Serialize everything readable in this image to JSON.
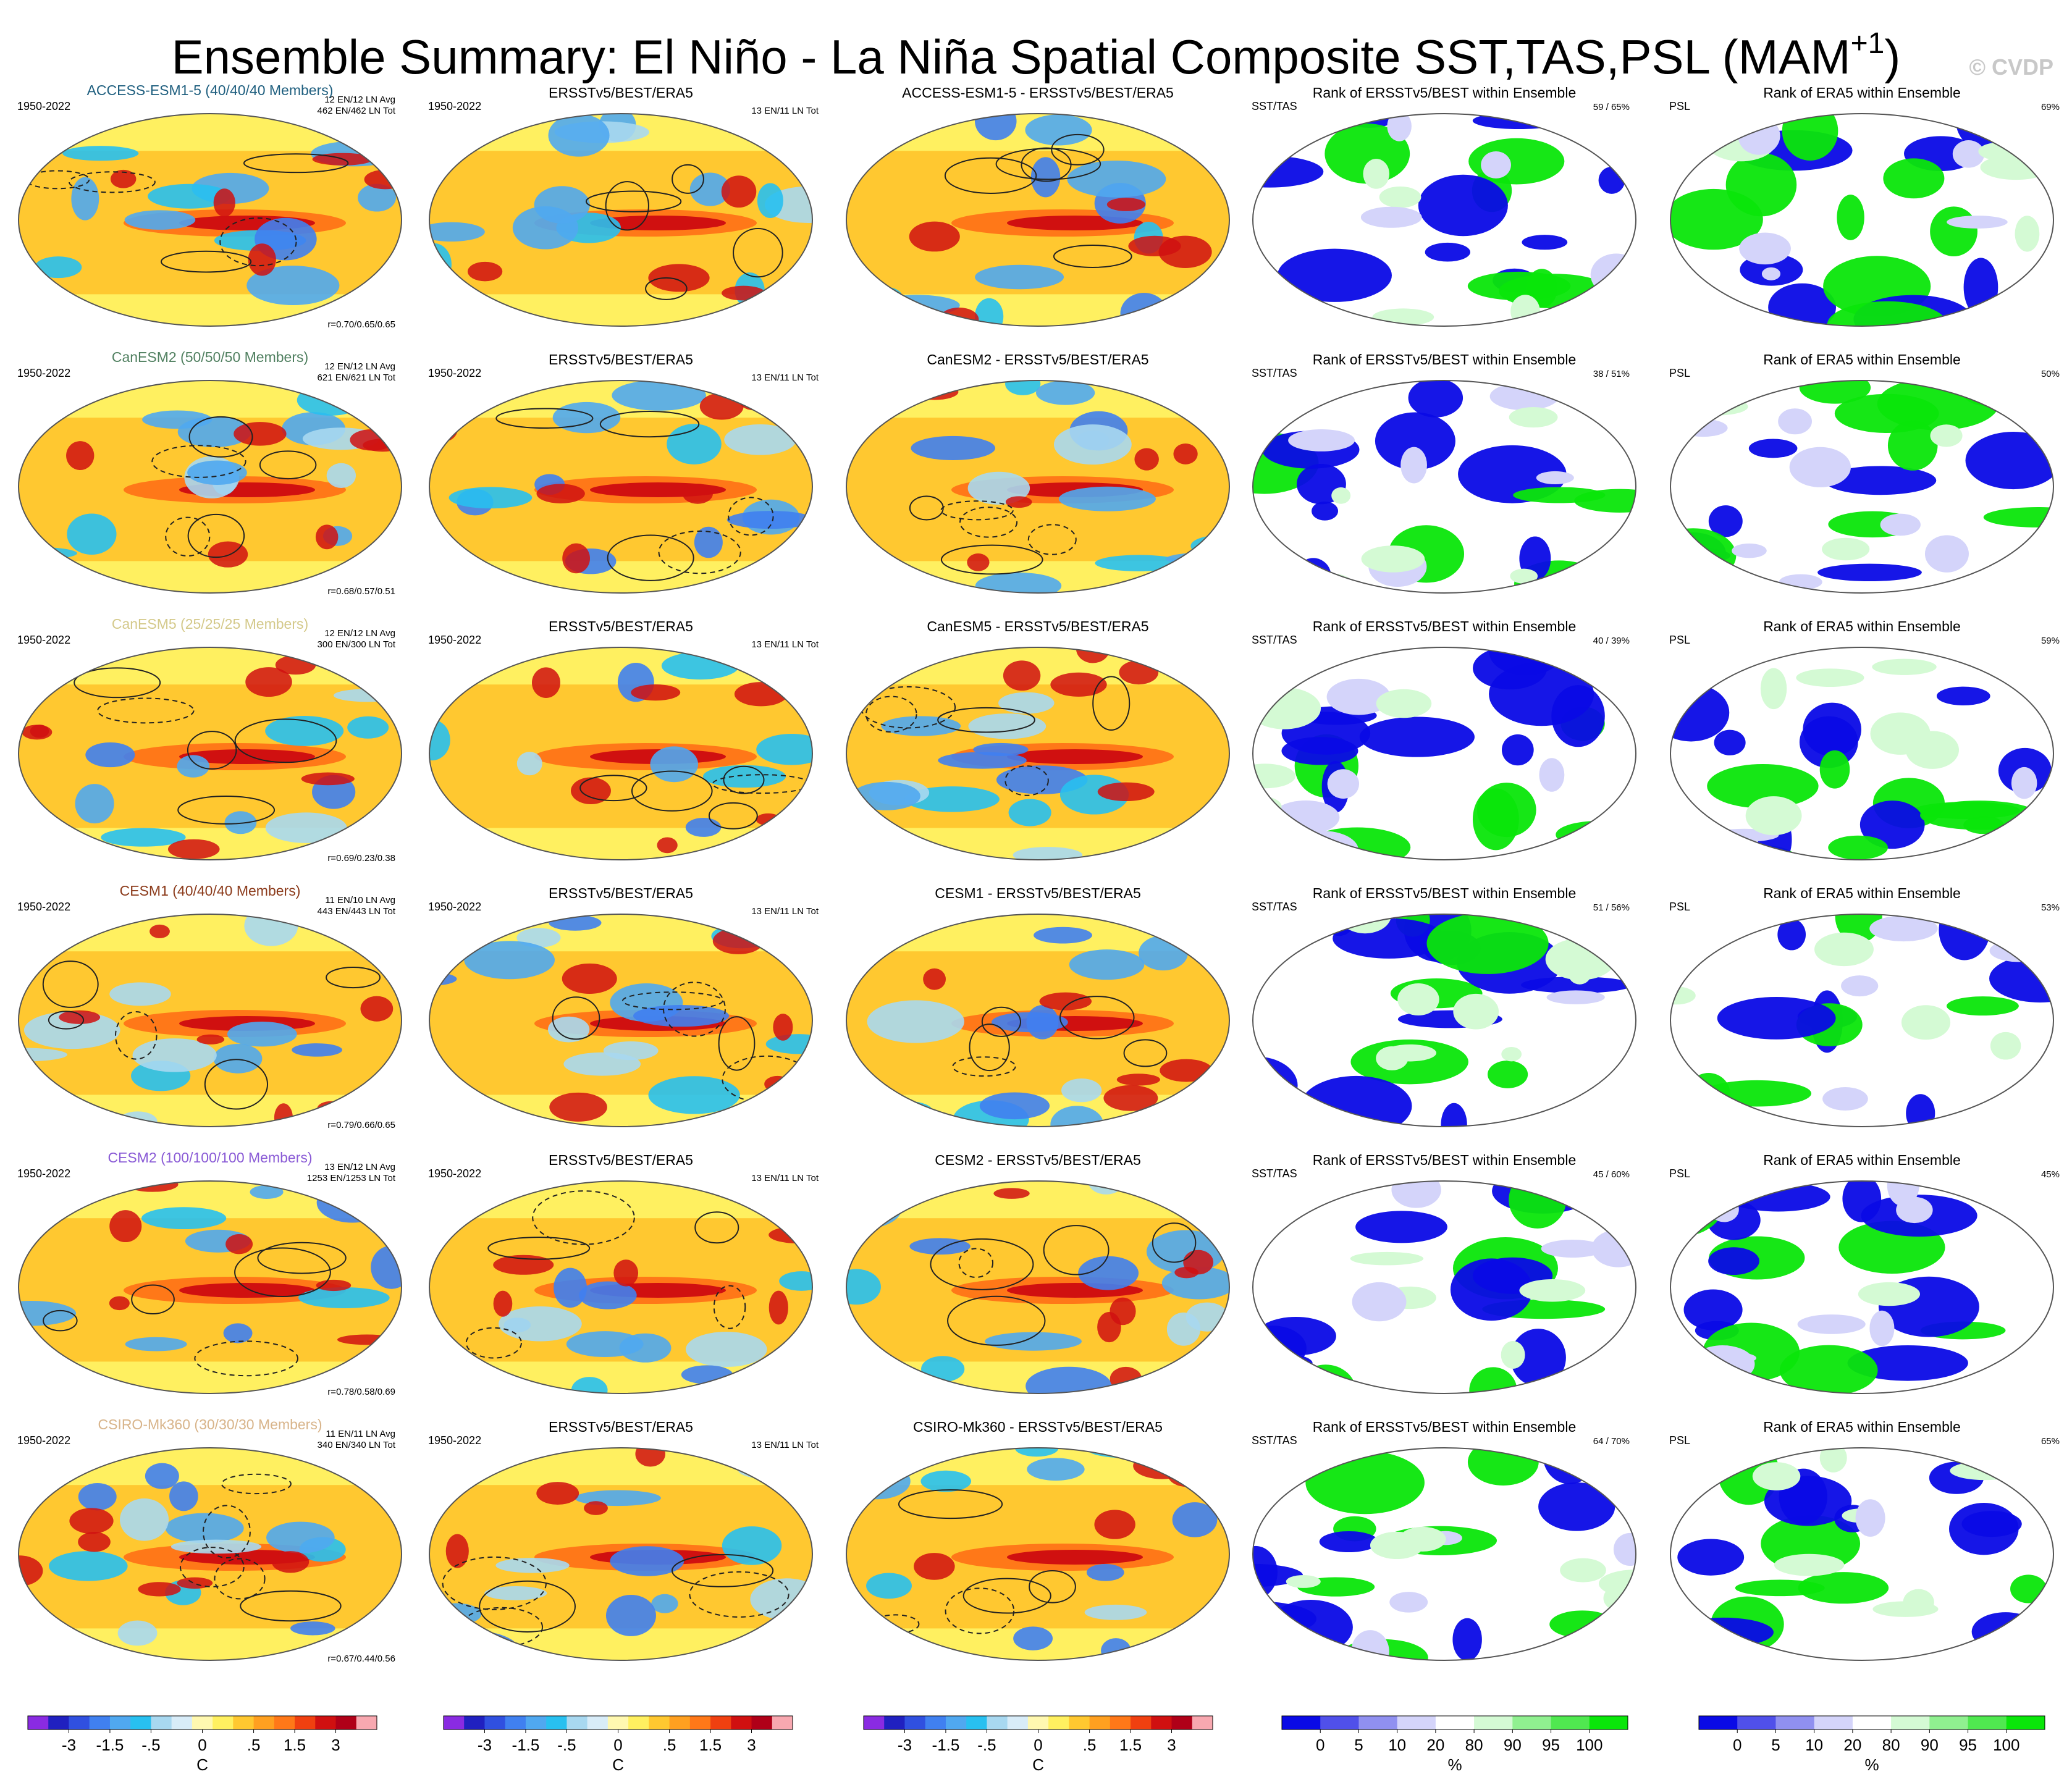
{
  "title": {
    "main": "Ensemble Summary: El Niño - La Niña Spatial Composite SST,TAS,PSL (MAM",
    "sup": "+1",
    "close": ")"
  },
  "copyright": "© CVDP",
  "column_titles": {
    "obs": "ERSSTv5/BEST/ERA5",
    "rank_sst": "Rank of ERSSTv5/BEST within Ensemble",
    "rank_psl": "Rank of ERA5 within Ensemble"
  },
  "period": "1950-2022",
  "obs_counts": "13 EN/11 LN Tot",
  "rank_labels": {
    "sst": "SST/TAS",
    "psl": "PSL"
  },
  "colors": {
    "blue": "#1010e6",
    "green": "#19e619",
    "light_blue": "#c8c8fa",
    "light_green": "#c8fac8"
  },
  "rows": [
    {
      "model": "ACCESS-ESM1-5 (40/40/40 Members)",
      "model_color": "#1f5f7f",
      "avg": "12 EN/12 LN Avg",
      "tot": "462 EN/462 LN Tot",
      "corr": "r=0.70/0.65/0.65",
      "diff": "ACCESS-ESM1-5 - ERSSTv5/BEST/ERA5",
      "rank_sst": "59 / 65%",
      "rank_psl": "69%"
    },
    {
      "model": "CanESM2 (50/50/50 Members)",
      "model_color": "#4f7f5f",
      "avg": "12 EN/12 LN Avg",
      "tot": "621 EN/621 LN Tot",
      "corr": "r=0.68/0.57/0.51",
      "diff": "CanESM2 - ERSSTv5/BEST/ERA5",
      "rank_sst": "38 / 51%",
      "rank_psl": "50%"
    },
    {
      "model": "CanESM5 (25/25/25 Members)",
      "model_color": "#d4c98a",
      "avg": "12 EN/12 LN Avg",
      "tot": "300 EN/300 LN Tot",
      "corr": "r=0.69/0.23/0.38",
      "diff": "CanESM5 - ERSSTv5/BEST/ERA5",
      "rank_sst": "40 / 39%",
      "rank_psl": "59%"
    },
    {
      "model": "CESM1 (40/40/40 Members)",
      "model_color": "#8b3a1a",
      "avg": "11 EN/10 LN Avg",
      "tot": "443 EN/443 LN Tot",
      "corr": "r=0.79/0.66/0.65",
      "diff": "CESM1 - ERSSTv5/BEST/ERA5",
      "rank_sst": "51 / 56%",
      "rank_psl": "53%"
    },
    {
      "model": "CESM2 (100/100/100 Members)",
      "model_color": "#8a5bd6",
      "avg": "13 EN/12 LN Avg",
      "tot": "1253 EN/1253 LN Tot",
      "corr": "r=0.78/0.58/0.69",
      "diff": "CESM2 - ERSSTv5/BEST/ERA5",
      "rank_sst": "45 / 60%",
      "rank_psl": "45%"
    },
    {
      "model": "CSIRO-Mk360 (30/30/30 Members)",
      "model_color": "#d8b48a",
      "avg": "11 EN/11 LN Avg",
      "tot": "340 EN/340 LN Tot",
      "corr": "r=0.67/0.44/0.56",
      "diff": "CSIRO-Mk360 - ERSSTv5/BEST/ERA5",
      "rank_sst": "64 / 70%",
      "rank_psl": "65%"
    }
  ],
  "chart_data": {
    "type": "heatmap",
    "colorbars": [
      {
        "name": "composite",
        "tick_labels": [
          "-3",
          "-1.5",
          "-.5",
          "0",
          ".5",
          "1.5",
          "3"
        ],
        "unit": "C",
        "colors": [
          "#8a2be2",
          "#2020c0",
          "#3050e0",
          "#4080f0",
          "#50a8f0",
          "#28c0f0",
          "#a8d8f0",
          "#d8ecf8",
          "#fff8b0",
          "#fff060",
          "#ffc830",
          "#ffa020",
          "#ff7818",
          "#f04010",
          "#d01010",
          "#b00018",
          "#f8a8b0"
        ]
      },
      {
        "name": "rank",
        "tick_labels": [
          "0",
          "5",
          "10",
          "20",
          "80",
          "90",
          "95",
          "100"
        ],
        "unit": "%",
        "colors": [
          "#0a0ae6",
          "#5050ea",
          "#9090f0",
          "#d4d4fa",
          "#ffffff",
          "#d4fad4",
          "#90f090",
          "#50e850",
          "#0ae60a"
        ]
      }
    ]
  }
}
